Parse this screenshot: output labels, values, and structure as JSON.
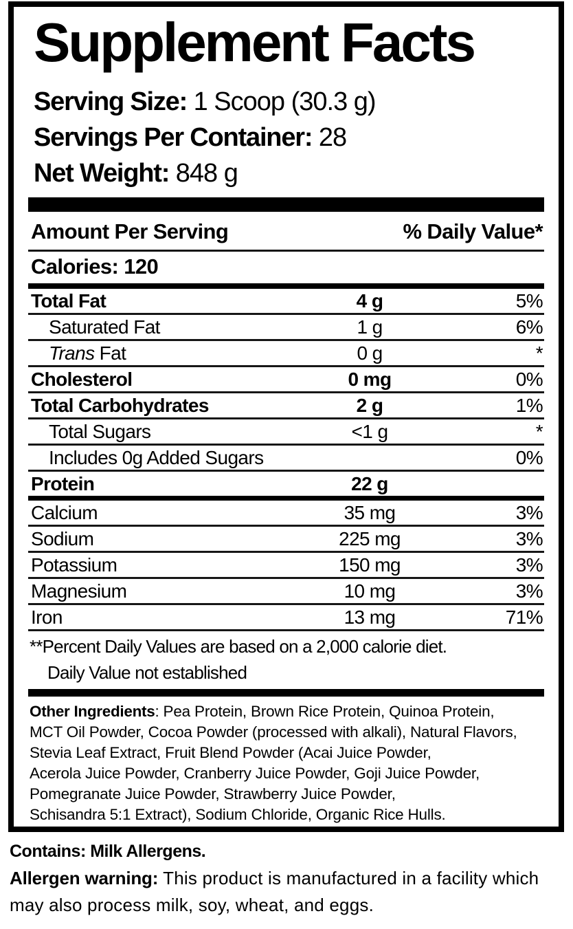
{
  "panel": {
    "title": "Supplement Facts",
    "serving_info": [
      {
        "label": "Serving Size:",
        "value": " 1 Scoop (30.3 g)"
      },
      {
        "label": "Servings Per Container:",
        "value": " 28"
      },
      {
        "label": "Net Weight:",
        "value": " 848 g"
      }
    ],
    "table": {
      "header_left": "Amount Per Serving",
      "header_right": "% Daily Value*",
      "calories_line": "Calories: 120",
      "rows": [
        {
          "name": "Total Fat",
          "amount": "4 g",
          "dv": "5%",
          "bold": true
        },
        {
          "name": "Saturated Fat",
          "amount": "1 g",
          "dv": "6%",
          "indent": true
        },
        {
          "name": "Trans Fat",
          "amount": "0 g",
          "dv": "*",
          "indent": true,
          "italic_first": true
        },
        {
          "name": "Cholesterol",
          "amount": "0 mg",
          "dv": "0%",
          "bold": true
        },
        {
          "name": "Total Carbohydrates",
          "amount": "2 g",
          "dv": "1%",
          "bold": true
        },
        {
          "name": "Total Sugars",
          "amount": "<1 g",
          "dv": "*",
          "indent": true
        },
        {
          "name": "Includes 0g Added Sugars",
          "amount": "",
          "dv": "0%",
          "indent": true
        },
        {
          "name": "Protein",
          "amount": "22 g",
          "dv": "",
          "bold": true,
          "separator": "thick"
        },
        {
          "name": "Calcium",
          "amount": "35 mg",
          "dv": "3%"
        },
        {
          "name": "Sodium",
          "amount": "225 mg",
          "dv": "3%"
        },
        {
          "name": "Potassium",
          "amount": "150 mg",
          "dv": "3%"
        },
        {
          "name": "Magnesium",
          "amount": "10 mg",
          "dv": "3%"
        },
        {
          "name": "Iron",
          "amount": "13 mg",
          "dv": "71%"
        }
      ]
    },
    "footnotes": [
      "**Percent Daily Values are based on a 2,000 calorie diet.",
      "Daily Value not established"
    ],
    "other_ingredients": {
      "label": "Other Ingredients",
      "lines": [
        ": Pea Protein, Brown Rice Protein, Quinoa Protein,",
        "MCT Oil Powder, Cocoa Powder (processed with alkali), Natural Flavors,",
        "Stevia Leaf Extract, Fruit Blend Powder (Acai Juice Powder,",
        "Acerola Juice Powder, Cranberry Juice Powder, Goji Juice Powder,",
        "Pomegranate Juice Powder, Strawberry Juice Powder,",
        "Schisandra 5:1 Extract), Sodium Chloride, Organic Rice Hulls."
      ]
    },
    "contains_line": "Contains: Milk Allergens.",
    "allergen": {
      "label": "Allergen warning:",
      "text": " This product is manufactured in a facility which may also process milk, soy, wheat, and eggs."
    },
    "colors": {
      "ink": "#000000",
      "background": "#ffffff"
    }
  }
}
